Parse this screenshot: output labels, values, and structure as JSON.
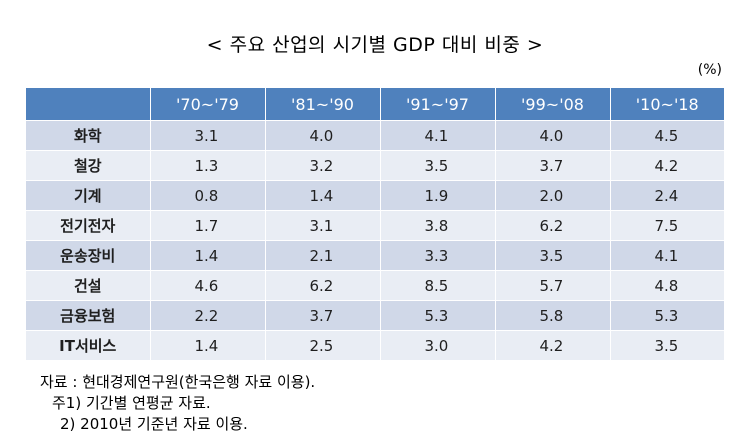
{
  "title": "< 주요 산업의 시기별 GDP 대비 비중 >",
  "unit": "(%)",
  "notes": {
    "source": "자료 : 현대경제연구원(한국은행 자료 이용).",
    "note1": "주1) 기간별 연평균 자료.",
    "note2": "2) 2010년 기준년 자료 이용."
  },
  "chart_data": {
    "type": "table",
    "title": "< 주요 산업의 시기별 GDP 대비 비중 >",
    "unit": "(%)",
    "columns": [
      "'70~'79",
      "'81~'90",
      "'91~'97",
      "'99~'08",
      "'10~'18"
    ],
    "rows": [
      {
        "label": "화학",
        "values": [
          "3.1",
          "4.0",
          "4.1",
          "4.0",
          "4.5"
        ]
      },
      {
        "label": "철강",
        "values": [
          "1.3",
          "3.2",
          "3.5",
          "3.7",
          "4.2"
        ]
      },
      {
        "label": "기계",
        "values": [
          "0.8",
          "1.4",
          "1.9",
          "2.0",
          "2.4"
        ]
      },
      {
        "label": "전기전자",
        "values": [
          "1.7",
          "3.1",
          "3.8",
          "6.2",
          "7.5"
        ]
      },
      {
        "label": "운송장비",
        "values": [
          "1.4",
          "2.1",
          "3.3",
          "3.5",
          "4.1"
        ]
      },
      {
        "label": "건설",
        "values": [
          "4.6",
          "6.2",
          "8.5",
          "5.7",
          "4.8"
        ]
      },
      {
        "label": "금융보험",
        "values": [
          "2.2",
          "3.7",
          "5.3",
          "5.8",
          "5.3"
        ]
      },
      {
        "label": "IT서비스",
        "values": [
          "1.4",
          "2.5",
          "3.0",
          "4.2",
          "3.5"
        ]
      }
    ]
  }
}
